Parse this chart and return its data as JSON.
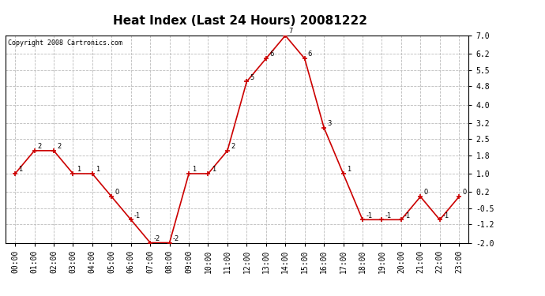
{
  "title": "Heat Index (Last 24 Hours) 20081222",
  "copyright": "Copyright 2008 Cartronics.com",
  "x_labels": [
    "00:00",
    "01:00",
    "02:00",
    "03:00",
    "04:00",
    "05:00",
    "06:00",
    "07:00",
    "08:00",
    "09:00",
    "10:00",
    "11:00",
    "12:00",
    "13:00",
    "14:00",
    "15:00",
    "16:00",
    "17:00",
    "18:00",
    "19:00",
    "20:00",
    "21:00",
    "22:00",
    "23:00"
  ],
  "y_values": [
    1,
    2,
    2,
    1,
    1,
    0,
    -1,
    -2,
    -2,
    1,
    1,
    2,
    5,
    6,
    7,
    6,
    3,
    1,
    -1,
    -1,
    -1,
    0,
    -1,
    0
  ],
  "y_ticks": [
    7.0,
    6.2,
    5.5,
    4.8,
    4.0,
    3.2,
    2.5,
    1.8,
    1.0,
    0.2,
    -0.5,
    -1.2,
    -2.0
  ],
  "ylim": [
    -2.0,
    7.0
  ],
  "line_color": "#cc0000",
  "marker_color": "#cc0000",
  "grid_color": "#bbbbbb",
  "bg_color": "#ffffff",
  "title_fontsize": 11,
  "tick_fontsize": 7,
  "label_fontsize": 7
}
